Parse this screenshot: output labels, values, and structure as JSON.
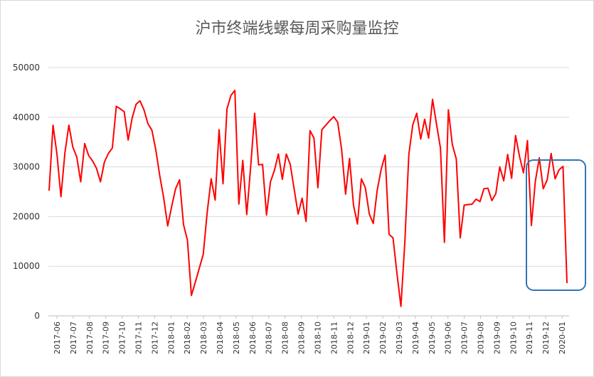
{
  "chart_data": {
    "type": "line",
    "title": "沪市终端线螺每周采购量监控",
    "xlabel": "",
    "ylabel": "",
    "ylim": [
      0,
      50000
    ],
    "yticks": [
      0,
      10000,
      20000,
      30000,
      40000,
      50000
    ],
    "x_tick_labels": [
      "2017-06",
      "2017-07",
      "2017-08",
      "2017-09",
      "2017-10",
      "2017-11",
      "2017-12",
      "2018-01",
      "2018-02",
      "2018-03",
      "2018-04",
      "2018-05",
      "2018-06",
      "2018-07",
      "2018-08",
      "2018-09",
      "2018-10",
      "2018-11",
      "2018-12",
      "2019-01",
      "2019-02",
      "2019-03",
      "2019-04",
      "2019-05",
      "2019-06",
      "2019-07",
      "2019-08",
      "2019-09",
      "2019-10",
      "2019-11",
      "2019-12",
      "2020-01"
    ],
    "grid": "horizontal",
    "legend": "none",
    "series_color": "#ff0000",
    "highlight_box_color": "#2e75b6",
    "highlight_range": {
      "from": "2019-11",
      "to": "2020-01"
    },
    "series": [
      {
        "values": [
          25200,
          38400,
          32500,
          24000,
          32800,
          38400,
          34000,
          32000,
          27000,
          34700,
          32300,
          31200,
          29700,
          27000,
          31000,
          32700,
          33800,
          42200,
          41700,
          41100,
          35400,
          39800,
          42600,
          43300,
          41500,
          38700,
          37400,
          33400,
          28200,
          23700,
          18100,
          22000,
          25600,
          27400,
          18400,
          15200,
          4100,
          6800,
          9600,
          12400,
          20900,
          27600,
          23300,
          37500,
          26600,
          41700,
          44400,
          45400,
          22500,
          31300,
          20400,
          30100,
          40800,
          30400,
          30500,
          20300,
          27000,
          29300,
          32600,
          27500,
          32600,
          30500,
          25500,
          20500,
          23700,
          19000,
          37300,
          35800,
          25800,
          37500,
          38400,
          39300,
          40100,
          39000,
          33500,
          24500,
          31700,
          22300,
          18500,
          27600,
          25800,
          20500,
          18600,
          25300,
          29500,
          32400,
          16400,
          15700,
          8500,
          1900,
          15000,
          32500,
          38500,
          40800,
          35600,
          39600,
          35800,
          43600,
          38600,
          33800,
          14800,
          41500,
          34500,
          31600,
          15700,
          22300,
          22400,
          22500,
          23500,
          23000,
          25600,
          25700,
          23200,
          24600,
          30000,
          27200,
          32500,
          27700,
          36300,
          32100,
          28800,
          35300,
          18200,
          27100,
          31800,
          25600,
          27400,
          32700,
          27600,
          29400,
          30100,
          6600
        ]
      }
    ]
  }
}
